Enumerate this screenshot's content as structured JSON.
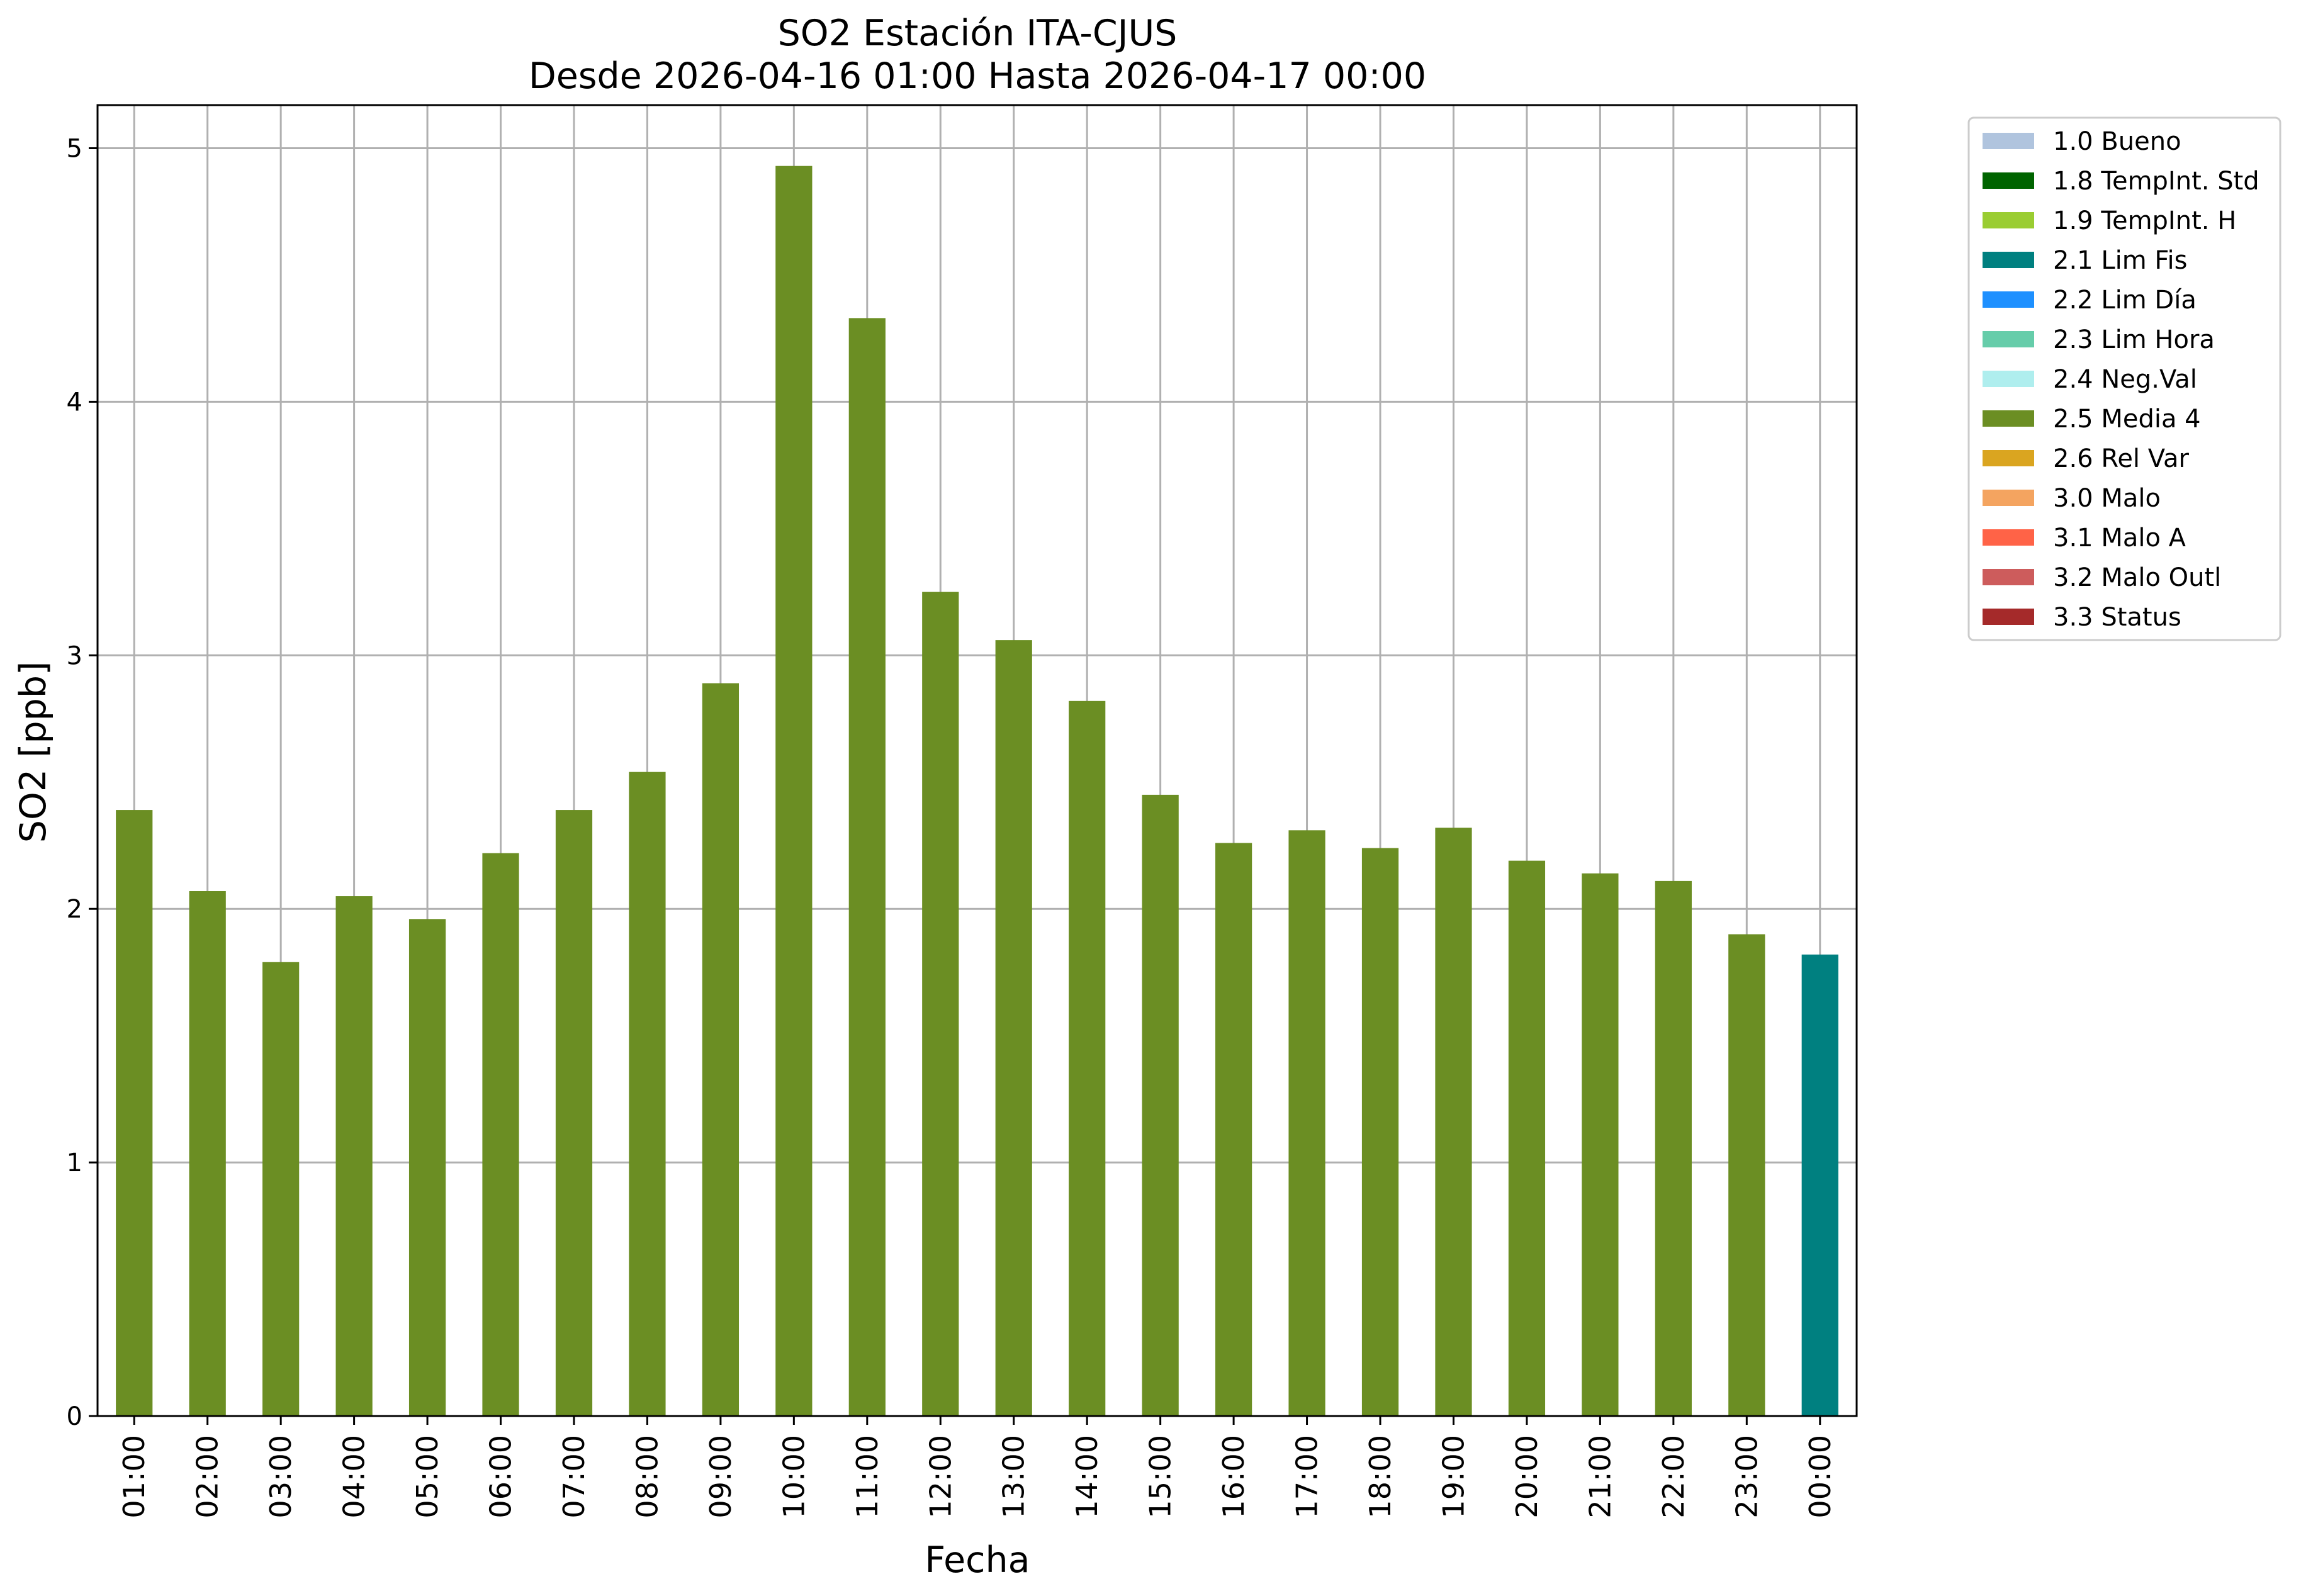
{
  "chart_data": {
    "type": "bar",
    "title": [
      "SO2 Estación ITA-CJUS",
      "Desde 2026-04-16 01:00 Hasta 2026-04-17 00:00"
    ],
    "xlabel": "Fecha",
    "ylabel": "SO2 [ppb]",
    "ylim": [
      0,
      5.17
    ],
    "yticks": [
      0,
      1,
      2,
      3,
      4,
      5
    ],
    "grid": true,
    "legend_position": "outside-top-right",
    "categories": [
      "01:00",
      "02:00",
      "03:00",
      "04:00",
      "05:00",
      "06:00",
      "07:00",
      "08:00",
      "09:00",
      "10:00",
      "11:00",
      "12:00",
      "13:00",
      "14:00",
      "15:00",
      "16:00",
      "17:00",
      "18:00",
      "19:00",
      "20:00",
      "21:00",
      "22:00",
      "23:00",
      "00:00"
    ],
    "values": [
      2.39,
      2.07,
      1.79,
      2.05,
      1.96,
      2.22,
      2.39,
      2.54,
      2.89,
      4.93,
      4.33,
      3.25,
      3.06,
      2.82,
      2.45,
      2.26,
      2.31,
      2.24,
      2.32,
      2.19,
      2.14,
      2.11,
      1.9,
      1.82
    ],
    "flags": [
      "2.5 Media 4",
      "2.5 Media 4",
      "2.5 Media 4",
      "2.5 Media 4",
      "2.5 Media 4",
      "2.5 Media 4",
      "2.5 Media 4",
      "2.5 Media 4",
      "2.5 Media 4",
      "2.5 Media 4",
      "2.5 Media 4",
      "2.5 Media 4",
      "2.5 Media 4",
      "2.5 Media 4",
      "2.5 Media 4",
      "2.5 Media 4",
      "2.5 Media 4",
      "2.5 Media 4",
      "2.5 Media 4",
      "2.5 Media 4",
      "2.5 Media 4",
      "2.5 Media 4",
      "2.5 Media 4",
      "2.1 Lim Fis"
    ],
    "legend": [
      {
        "label": "1.0 Bueno",
        "color": "#b0c4de"
      },
      {
        "label": "1.8 TempInt. Std",
        "color": "#006400"
      },
      {
        "label": "1.9 TempInt. H",
        "color": "#9acd32"
      },
      {
        "label": "2.1 Lim Fis",
        "color": "#008080"
      },
      {
        "label": "2.2 Lim Día",
        "color": "#1e90ff"
      },
      {
        "label": "2.3 Lim Hora",
        "color": "#66cdaa"
      },
      {
        "label": "2.4 Neg.Val",
        "color": "#afeeee"
      },
      {
        "label": "2.5 Media 4",
        "color": "#6b8e23"
      },
      {
        "label": "2.6 Rel Var",
        "color": "#daa520"
      },
      {
        "label": "3.0 Malo",
        "color": "#f4a460"
      },
      {
        "label": "3.1 Malo A",
        "color": "#ff6347"
      },
      {
        "label": "3.2 Malo Outl",
        "color": "#cd5c5c"
      },
      {
        "label": "3.3 Status",
        "color": "#a52a2a"
      }
    ]
  }
}
